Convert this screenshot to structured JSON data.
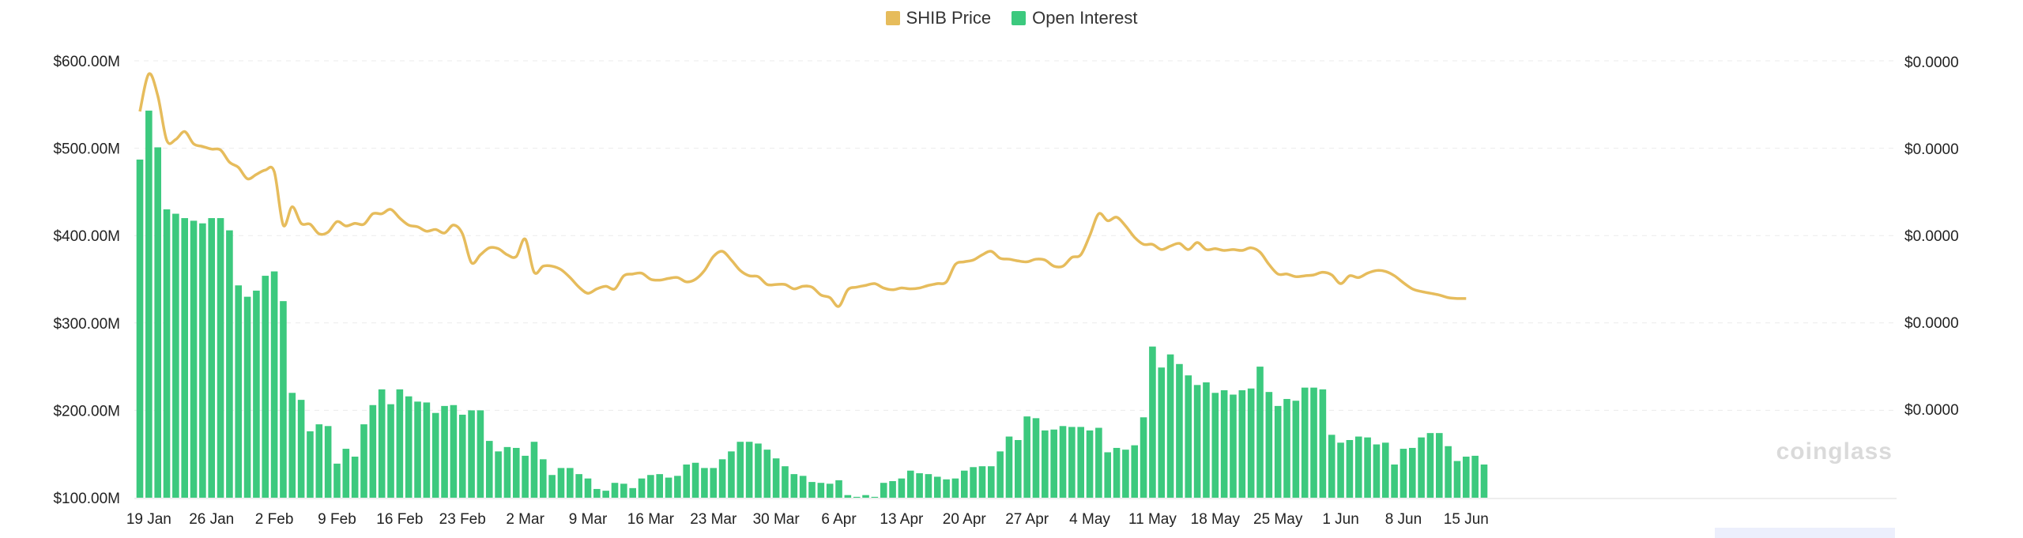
{
  "legend": {
    "price_label": "SHIB Price",
    "oi_label": "Open Interest"
  },
  "watermark": "coinglass",
  "colors": {
    "price_line": "#E6BC5C",
    "open_interest_bar": "#3CC97E",
    "grid": "#EBEBEB",
    "axis_text": "#222222"
  },
  "chart_data": {
    "type": "bar",
    "title": "",
    "xlabel": "",
    "ylabel": "",
    "ylim": [
      100,
      600
    ],
    "y_unit": "M",
    "y_left_ticks": [
      "$100.00M",
      "$200.00M",
      "$300.00M",
      "$400.00M",
      "$500.00M",
      "$600.00M"
    ],
    "y_right_ticks": [
      "$0.0000",
      "$0.0000",
      "$0.0000",
      "$0.0000",
      "$0.0000"
    ],
    "x_tick_labels": [
      "19 Jan",
      "26 Jan",
      "2 Feb",
      "9 Feb",
      "16 Feb",
      "23 Feb",
      "2 Mar",
      "9 Mar",
      "16 Mar",
      "23 Mar",
      "30 Mar",
      "6 Apr",
      "13 Apr",
      "20 Apr",
      "27 Apr",
      "4 May",
      "11 May",
      "18 May",
      "25 May",
      "1 Jun",
      "8 Jun",
      "15 Jun"
    ],
    "x_tick_index": [
      1,
      8,
      15,
      22,
      29,
      36,
      43,
      50,
      57,
      64,
      71,
      78,
      85,
      92,
      99,
      106,
      113,
      120,
      127,
      134,
      141,
      148
    ],
    "grid": true,
    "legend_position": "top",
    "series": [
      {
        "name": "Open Interest",
        "type": "bar",
        "values": [
          487,
          543,
          501,
          430,
          425,
          420,
          417,
          414,
          420,
          420,
          406,
          343,
          330,
          337,
          354,
          359,
          325,
          220,
          212,
          176,
          184,
          182,
          139,
          156,
          147,
          184,
          206,
          224,
          207,
          224,
          216,
          210,
          209,
          197,
          205,
          206,
          195,
          200,
          200,
          165,
          153,
          158,
          157,
          148,
          164,
          144,
          126,
          134,
          134,
          127,
          122,
          110,
          108,
          117,
          116,
          111,
          122,
          126,
          127,
          123,
          125,
          138,
          140,
          134,
          134,
          144,
          153,
          164,
          164,
          162,
          155,
          145,
          136,
          127,
          125,
          118,
          117,
          116,
          120,
          103,
          101,
          103,
          101,
          117,
          119,
          122,
          131,
          128,
          127,
          124,
          121,
          122,
          131,
          135,
          136,
          136,
          153,
          170,
          166,
          193,
          191,
          177,
          178,
          182,
          181,
          181,
          177,
          180,
          152,
          157,
          155,
          160,
          192,
          273,
          249,
          264,
          253,
          240,
          229,
          232,
          220,
          223,
          218,
          223,
          225,
          250,
          221,
          205,
          213,
          211,
          226,
          226,
          224,
          172,
          163,
          166,
          170,
          169,
          161,
          163,
          138,
          156,
          157,
          169,
          174,
          174,
          159,
          142,
          147,
          148,
          138
        ]
      },
      {
        "name": "SHIB Price",
        "type": "line",
        "values": [
          542,
          585,
          560,
          509,
          510,
          519,
          505,
          502,
          499,
          498,
          484,
          478,
          465,
          470,
          475,
          473,
          412,
          433,
          414,
          413,
          402,
          404,
          416,
          411,
          414,
          413,
          425,
          425,
          430,
          420,
          412,
          410,
          405,
          407,
          403,
          412,
          402,
          369,
          378,
          386,
          385,
          378,
          376,
          396,
          358,
          365,
          365,
          361,
          352,
          341,
          334,
          339,
          342,
          339,
          354,
          356,
          357,
          350,
          349,
          351,
          352,
          347,
          350,
          360,
          376,
          382,
          372,
          360,
          354,
          353,
          344,
          344,
          344,
          339,
          342,
          341,
          332,
          329,
          319,
          338,
          341,
          343,
          345,
          340,
          338,
          340,
          339,
          340,
          343,
          345,
          347,
          367,
          370,
          372,
          378,
          382,
          374,
          373,
          371,
          370,
          373,
          372,
          365,
          365,
          375,
          378,
          400,
          425,
          417,
          421,
          411,
          398,
          390,
          390,
          384,
          388,
          391,
          384,
          392,
          384,
          385,
          383,
          384,
          383,
          386,
          381,
          367,
          356,
          356,
          353,
          354,
          355,
          358,
          355,
          345,
          354,
          352,
          357,
          360,
          359,
          354,
          346,
          339,
          336,
          334,
          332,
          329,
          328,
          328
        ]
      }
    ]
  }
}
